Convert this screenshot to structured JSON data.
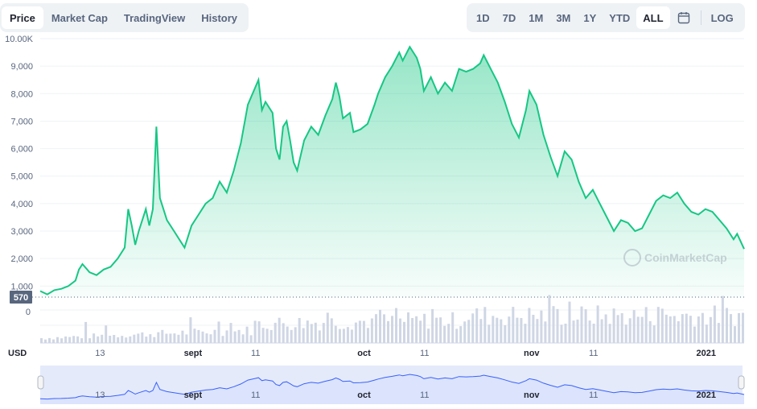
{
  "tabs_left": [
    "Price",
    "Market Cap",
    "TradingView",
    "History"
  ],
  "tabs_left_active": 0,
  "tabs_right": [
    "1D",
    "7D",
    "1M",
    "3M",
    "1Y",
    "YTD",
    "ALL"
  ],
  "tabs_right_active": 6,
  "log_label": "LOG",
  "currency_label": "USD",
  "watermark": "CoinMarketCap",
  "colors": {
    "line": "#16c784",
    "fill_top": "#16c784",
    "volume": "#cfd6e4",
    "navigator": "#3861fb"
  },
  "icons": {
    "calendar": "calendar-icon",
    "watermark_logo": "coinmarketcap-logo-icon"
  },
  "chart_data": {
    "type": "line",
    "ylim": [
      570,
      10000
    ],
    "y_ticks": [
      "1,000",
      "2,000",
      "3,000",
      "4,000",
      "5,000",
      "6,000",
      "7,000",
      "8,000",
      "9,000",
      "10.00K"
    ],
    "y_tick_values": [
      1000,
      2000,
      3000,
      4000,
      5000,
      6000,
      7000,
      8000,
      9000,
      10000
    ],
    "baseline_label": "570",
    "baseline_value": 570,
    "volume_zero_label": "0",
    "x_ticks": [
      {
        "label": "13",
        "t": 0.085,
        "bold": false
      },
      {
        "label": "sept",
        "t": 0.217,
        "bold": true
      },
      {
        "label": "11",
        "t": 0.306,
        "bold": false
      },
      {
        "label": "oct",
        "t": 0.46,
        "bold": true
      },
      {
        "label": "11",
        "t": 0.546,
        "bold": false
      },
      {
        "label": "nov",
        "t": 0.698,
        "bold": true
      },
      {
        "label": "11",
        "t": 0.786,
        "bold": false
      },
      {
        "label": "2021",
        "t": 0.946,
        "bold": true
      }
    ],
    "series": [
      {
        "points": [
          [
            0.0,
            820
          ],
          [
            0.01,
            700
          ],
          [
            0.02,
            850
          ],
          [
            0.03,
            900
          ],
          [
            0.04,
            1000
          ],
          [
            0.05,
            1200
          ],
          [
            0.055,
            1600
          ],
          [
            0.06,
            1800
          ],
          [
            0.07,
            1500
          ],
          [
            0.08,
            1400
          ],
          [
            0.09,
            1600
          ],
          [
            0.1,
            1700
          ],
          [
            0.11,
            2000
          ],
          [
            0.12,
            2400
          ],
          [
            0.125,
            3800
          ],
          [
            0.13,
            3200
          ],
          [
            0.135,
            2500
          ],
          [
            0.14,
            3000
          ],
          [
            0.15,
            3800
          ],
          [
            0.155,
            3200
          ],
          [
            0.16,
            3800
          ],
          [
            0.165,
            6800
          ],
          [
            0.17,
            4200
          ],
          [
            0.18,
            3400
          ],
          [
            0.19,
            3000
          ],
          [
            0.2,
            2600
          ],
          [
            0.205,
            2400
          ],
          [
            0.215,
            3200
          ],
          [
            0.225,
            3600
          ],
          [
            0.235,
            4000
          ],
          [
            0.245,
            4200
          ],
          [
            0.255,
            4800
          ],
          [
            0.265,
            4400
          ],
          [
            0.275,
            5200
          ],
          [
            0.285,
            6200
          ],
          [
            0.295,
            7600
          ],
          [
            0.305,
            8200
          ],
          [
            0.31,
            8500
          ],
          [
            0.315,
            7400
          ],
          [
            0.32,
            7700
          ],
          [
            0.33,
            7300
          ],
          [
            0.335,
            6000
          ],
          [
            0.34,
            5600
          ],
          [
            0.345,
            6800
          ],
          [
            0.35,
            7000
          ],
          [
            0.355,
            6300
          ],
          [
            0.36,
            5500
          ],
          [
            0.365,
            5200
          ],
          [
            0.375,
            6300
          ],
          [
            0.385,
            6800
          ],
          [
            0.395,
            6500
          ],
          [
            0.405,
            7200
          ],
          [
            0.415,
            7800
          ],
          [
            0.42,
            8400
          ],
          [
            0.425,
            7900
          ],
          [
            0.43,
            7100
          ],
          [
            0.44,
            7300
          ],
          [
            0.445,
            6600
          ],
          [
            0.455,
            6700
          ],
          [
            0.465,
            6900
          ],
          [
            0.475,
            7600
          ],
          [
            0.48,
            8000
          ],
          [
            0.49,
            8600
          ],
          [
            0.5,
            9000
          ],
          [
            0.51,
            9500
          ],
          [
            0.515,
            9200
          ],
          [
            0.525,
            9700
          ],
          [
            0.535,
            9300
          ],
          [
            0.54,
            8900
          ],
          [
            0.545,
            8100
          ],
          [
            0.555,
            8600
          ],
          [
            0.565,
            8000
          ],
          [
            0.575,
            8400
          ],
          [
            0.585,
            8100
          ],
          [
            0.595,
            8900
          ],
          [
            0.605,
            8800
          ],
          [
            0.615,
            8900
          ],
          [
            0.625,
            9100
          ],
          [
            0.63,
            9400
          ],
          [
            0.64,
            8900
          ],
          [
            0.65,
            8400
          ],
          [
            0.66,
            7700
          ],
          [
            0.67,
            6900
          ],
          [
            0.68,
            6400
          ],
          [
            0.69,
            7400
          ],
          [
            0.695,
            8100
          ],
          [
            0.705,
            7600
          ],
          [
            0.715,
            6500
          ],
          [
            0.725,
            5700
          ],
          [
            0.735,
            5000
          ],
          [
            0.745,
            5900
          ],
          [
            0.755,
            5600
          ],
          [
            0.765,
            4800
          ],
          [
            0.775,
            4200
          ],
          [
            0.785,
            4500
          ],
          [
            0.795,
            4000
          ],
          [
            0.805,
            3500
          ],
          [
            0.815,
            3000
          ],
          [
            0.825,
            3400
          ],
          [
            0.835,
            3300
          ],
          [
            0.845,
            3000
          ],
          [
            0.855,
            3100
          ],
          [
            0.865,
            3600
          ],
          [
            0.875,
            4100
          ],
          [
            0.885,
            4300
          ],
          [
            0.895,
            4200
          ],
          [
            0.905,
            4400
          ],
          [
            0.915,
            4000
          ],
          [
            0.925,
            3700
          ],
          [
            0.935,
            3600
          ],
          [
            0.945,
            3800
          ],
          [
            0.955,
            3700
          ],
          [
            0.965,
            3400
          ],
          [
            0.975,
            3100
          ],
          [
            0.985,
            2700
          ],
          [
            0.99,
            2900
          ],
          [
            1.0,
            2350
          ]
        ]
      }
    ]
  }
}
